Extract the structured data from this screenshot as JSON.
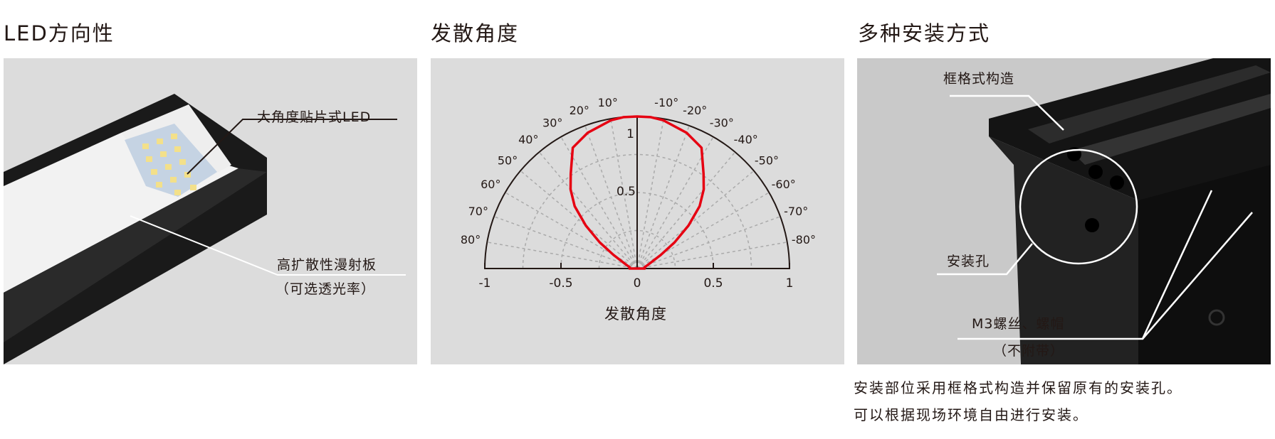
{
  "sections": [
    {
      "title": "LED方向性",
      "labels": {
        "led": "大角度贴片式LED",
        "diffuser": "高扩散性漫射板",
        "diffuser_note": "（可选透光率）"
      }
    },
    {
      "title": "发散角度"
    },
    {
      "title": "多种安装方式",
      "labels": {
        "frame": "框格式构造",
        "hole": "安装孔",
        "screw": "M3螺丝、螺帽",
        "screw_note": "（不附带）"
      },
      "description": [
        "安装部位采用框格式构造并保留原有的安装孔。",
        "可以根据现场环境自由进行安装。"
      ]
    }
  ],
  "chart_data": {
    "type": "polar-line",
    "xlabel": "发散角度",
    "x_ticks": [
      "-1",
      "-0.5",
      "0",
      "0.5",
      "1"
    ],
    "radial_labels": [
      "1",
      "0.5"
    ],
    "angle_labels_left": [
      "10°",
      "20°",
      "30°",
      "40°",
      "50°",
      "60°",
      "70°",
      "80°"
    ],
    "angle_labels_right": [
      "-10°",
      "-20°",
      "-30°",
      "-40°",
      "-50°",
      "-60°",
      "-70°",
      "-80°"
    ],
    "rlim": [
      0,
      1
    ],
    "angle_range": [
      -90,
      90
    ],
    "grid": true,
    "series": [
      {
        "color": "#e60012",
        "angles": [
          0,
          5,
          10,
          20,
          28,
          35,
          40,
          45,
          50,
          55,
          60,
          70,
          80,
          90
        ],
        "values": [
          1,
          1,
          0.99,
          0.95,
          0.9,
          0.76,
          0.68,
          0.58,
          0.44,
          0.3,
          0.18,
          0.08,
          0.05,
          0.05
        ]
      }
    ]
  },
  "colors": {
    "curve": "#e60012",
    "panel": "#dcdcdc",
    "ink": "#231815"
  }
}
